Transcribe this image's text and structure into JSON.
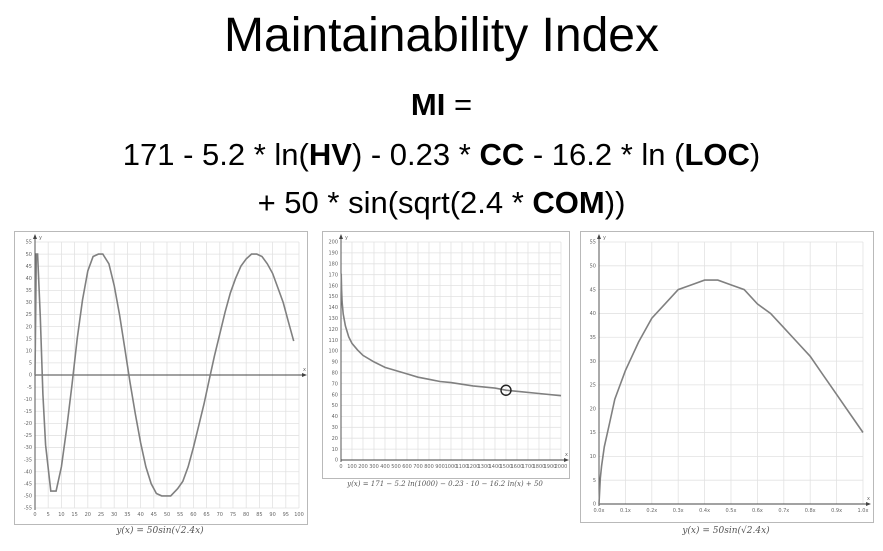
{
  "title": "Maintainability Index",
  "formula": {
    "lhs_var": "MI",
    "lhs_eq": " =",
    "l2_a": "171 - 5.2 * ln(",
    "l2_hv": "HV",
    "l2_b": ") - 0.23 * ",
    "l2_cc": "CC",
    "l2_c": " - 16.2 * ln (",
    "l2_loc": "LOC",
    "l2_d": ")",
    "l3_a": "+ 50 * sin(sqrt(2.4 * ",
    "l3_com": "COM",
    "l3_b": "))"
  },
  "captions": {
    "sin_plot": "y(x) = 50sin(√2.4x)",
    "ln_plot": "y(x) = 171 − 5.2 ln(1000) − 0.23 · 10 − 16.2 ln(x) + 50",
    "sin_plot_zoom": "y(x) = 50sin(√2.4x)"
  },
  "chart_data": [
    {
      "type": "line",
      "title": "",
      "xlabel": "x",
      "ylabel": "y",
      "xlim": [
        0,
        100
      ],
      "ylim": [
        -55,
        55
      ],
      "x_ticks": [
        0,
        5,
        10,
        15,
        20,
        25,
        30,
        35,
        40,
        45,
        50,
        55,
        60,
        65,
        70,
        75,
        80,
        85,
        90,
        95,
        100
      ],
      "y_ticks": [
        -55,
        -50,
        -45,
        -40,
        -35,
        -30,
        -25,
        -20,
        -15,
        -10,
        -5,
        0,
        5,
        10,
        15,
        20,
        25,
        30,
        35,
        40,
        45,
        50,
        55
      ],
      "grid": true,
      "series": [
        {
          "x": [
            0,
            0.5,
            1,
            2,
            3,
            4,
            6,
            8,
            10,
            12,
            14,
            16,
            18,
            20,
            22,
            24,
            25.7,
            28,
            30,
            32,
            34,
            36,
            38,
            40,
            42,
            44,
            46,
            48,
            50,
            51.4,
            54,
            56,
            58,
            60,
            62,
            64,
            66,
            68,
            70,
            72,
            74,
            76,
            78,
            80,
            82,
            84,
            86,
            88,
            90,
            92,
            94,
            96,
            98
          ],
          "y": [
            0,
            50,
            50,
            24,
            -8,
            -29,
            -48,
            -48,
            -38,
            -22,
            -4,
            15,
            31,
            43,
            49,
            50,
            50,
            46,
            37,
            25,
            11,
            -3,
            -16,
            -28,
            -38,
            -45,
            -49,
            -50,
            -50,
            -50,
            -47,
            -44,
            -38,
            -30,
            -21,
            -12,
            -2,
            8,
            17,
            26,
            34,
            40,
            45,
            48,
            50,
            50,
            49,
            46,
            42,
            36,
            30,
            22,
            14
          ]
        }
      ]
    },
    {
      "type": "line",
      "title": "",
      "xlabel": "x",
      "ylabel": "y",
      "xlim": [
        0,
        2000
      ],
      "ylim": [
        0,
        200
      ],
      "x_ticks": [
        0,
        100,
        200,
        300,
        400,
        500,
        600,
        700,
        800,
        900,
        1000,
        1100,
        1200,
        1300,
        1400,
        1500,
        1600,
        1700,
        1800,
        1900,
        2000
      ],
      "y_ticks": [
        0,
        10,
        20,
        30,
        40,
        50,
        60,
        70,
        80,
        90,
        100,
        110,
        120,
        130,
        140,
        150,
        160,
        170,
        180,
        190,
        200
      ],
      "grid": true,
      "series": [
        {
          "x": [
            2,
            5,
            10,
            20,
            40,
            70,
            100,
            150,
            200,
            300,
            400,
            500,
            600,
            700,
            800,
            900,
            1000,
            1200,
            1400,
            1500,
            1600,
            1800,
            2000
          ],
          "y": [
            171,
            156,
            145,
            134,
            123,
            113,
            107,
            101,
            96,
            90,
            85,
            82,
            79,
            76,
            74,
            72,
            71,
            68,
            66,
            64,
            63,
            61,
            59
          ]
        }
      ],
      "highlight": {
        "x": 1500,
        "y": 64
      }
    },
    {
      "type": "line",
      "title": "",
      "xlabel": "x",
      "ylabel": "y",
      "xlim": [
        0,
        1.0
      ],
      "ylim": [
        0,
        55
      ],
      "x_ticks": [
        "0.0x",
        "0.1x",
        "0.2x",
        "0.3x",
        "0.4x",
        "0.5x",
        "0.6x",
        "0.7x",
        "0.8x",
        "0.9x",
        "1.0x"
      ],
      "y_ticks": [
        0,
        5,
        10,
        15,
        20,
        25,
        30,
        35,
        40,
        45,
        50,
        55
      ],
      "grid": true,
      "series": [
        {
          "x": [
            0,
            0.005,
            0.01,
            0.02,
            0.04,
            0.06,
            0.08,
            0.1,
            0.15,
            0.2,
            0.25,
            0.3,
            0.35,
            0.4,
            0.45,
            0.5,
            0.55,
            0.6,
            0.65,
            0.7,
            0.75,
            0.8,
            0.85,
            0.9,
            0.95,
            1.0
          ],
          "y": [
            0,
            5.4,
            8,
            12,
            17,
            22,
            25,
            28,
            34,
            39,
            42,
            45,
            46,
            47,
            47,
            46,
            45,
            42,
            40,
            37,
            34,
            31,
            27,
            23,
            19,
            15
          ]
        }
      ]
    }
  ]
}
